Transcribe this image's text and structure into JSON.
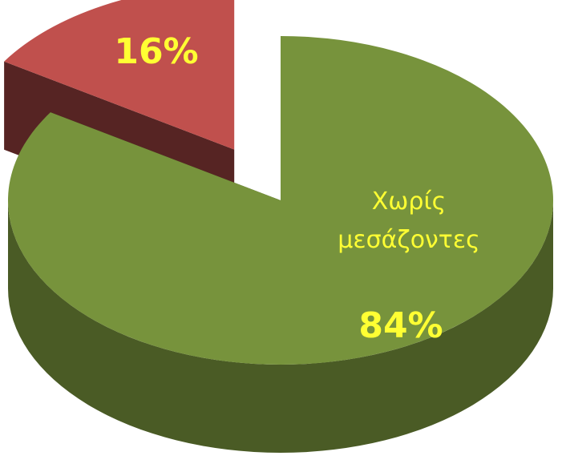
{
  "chart_data": {
    "type": "pie",
    "categories": [
      "Χωρίς μεσάζοντες",
      null
    ],
    "values": [
      84,
      16
    ],
    "value_labels": [
      "84%",
      "16%"
    ],
    "colors": [
      "#77933c",
      "#c0504d"
    ]
  }
}
